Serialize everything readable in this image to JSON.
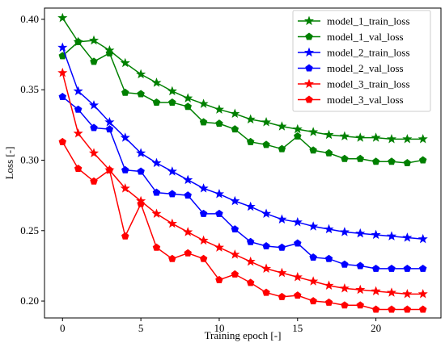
{
  "chart_data": {
    "type": "line",
    "title": "",
    "xlabel": "Training epoch [-]",
    "ylabel": "Loss [-]",
    "xlim": [
      -1.15,
      24.15
    ],
    "ylim": [
      0.188,
      0.408
    ],
    "xticks": [
      0,
      5,
      10,
      15,
      20
    ],
    "xtick_labels": [
      "0",
      "5",
      "10",
      "15",
      "20"
    ],
    "yticks": [
      0.2,
      0.25,
      0.3,
      0.35,
      0.4
    ],
    "ytick_labels": [
      "0.20",
      "0.25",
      "0.30",
      "0.35",
      "0.40"
    ],
    "grid": false,
    "legend_position": "top-right",
    "x": [
      0,
      1,
      2,
      3,
      4,
      5,
      6,
      7,
      8,
      9,
      10,
      11,
      12,
      13,
      14,
      15,
      16,
      17,
      18,
      19,
      20,
      21,
      22,
      23
    ],
    "series": [
      {
        "name": "model_1_train_loss",
        "color": "#008000",
        "marker": "star",
        "values": [
          0.401,
          0.384,
          0.385,
          0.378,
          0.369,
          0.361,
          0.355,
          0.349,
          0.344,
          0.34,
          0.336,
          0.333,
          0.329,
          0.327,
          0.324,
          0.322,
          0.32,
          0.318,
          0.317,
          0.316,
          0.316,
          0.315,
          0.315,
          0.315
        ]
      },
      {
        "name": "model_1_val_loss",
        "color": "#008000",
        "marker": "pentagon",
        "values": [
          0.374,
          0.384,
          0.37,
          0.376,
          0.348,
          0.347,
          0.341,
          0.341,
          0.338,
          0.327,
          0.326,
          0.322,
          0.313,
          0.311,
          0.308,
          0.317,
          0.307,
          0.305,
          0.301,
          0.301,
          0.299,
          0.299,
          0.298,
          0.3
        ]
      },
      {
        "name": "model_2_train_loss",
        "color": "#0000ff",
        "marker": "star",
        "values": [
          0.38,
          0.349,
          0.339,
          0.327,
          0.316,
          0.305,
          0.298,
          0.292,
          0.286,
          0.28,
          0.276,
          0.271,
          0.267,
          0.262,
          0.258,
          0.256,
          0.253,
          0.251,
          0.249,
          0.248,
          0.247,
          0.246,
          0.245,
          0.244
        ]
      },
      {
        "name": "model_2_val_loss",
        "color": "#0000ff",
        "marker": "pentagon",
        "values": [
          0.345,
          0.336,
          0.323,
          0.322,
          0.293,
          0.292,
          0.277,
          0.276,
          0.275,
          0.262,
          0.262,
          0.251,
          0.242,
          0.239,
          0.238,
          0.241,
          0.231,
          0.23,
          0.226,
          0.225,
          0.223,
          0.223,
          0.223,
          0.223
        ]
      },
      {
        "name": "model_3_train_loss",
        "color": "#ff0000",
        "marker": "star",
        "values": [
          0.362,
          0.319,
          0.305,
          0.293,
          0.28,
          0.271,
          0.262,
          0.255,
          0.249,
          0.243,
          0.238,
          0.233,
          0.228,
          0.223,
          0.22,
          0.217,
          0.214,
          0.211,
          0.209,
          0.208,
          0.207,
          0.206,
          0.205,
          0.205
        ]
      },
      {
        "name": "model_3_val_loss",
        "color": "#ff0000",
        "marker": "pentagon",
        "values": [
          0.313,
          0.294,
          0.285,
          0.293,
          0.246,
          0.269,
          0.238,
          0.23,
          0.234,
          0.23,
          0.215,
          0.219,
          0.213,
          0.206,
          0.203,
          0.204,
          0.2,
          0.199,
          0.197,
          0.197,
          0.194,
          0.194,
          0.194,
          0.194
        ]
      }
    ]
  }
}
